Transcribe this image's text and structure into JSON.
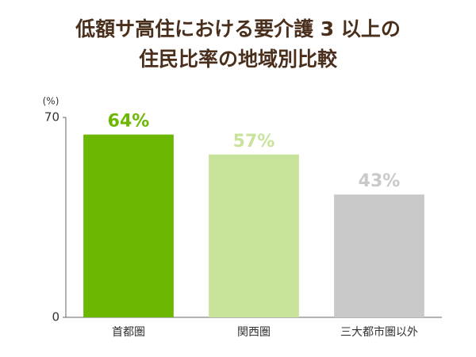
{
  "chart_data": {
    "type": "bar",
    "title": [
      "低額サ高住における要介護 3 以上の",
      "住民比率の地域別比較"
    ],
    "y_unit": "(%)",
    "categories": [
      "首都圏",
      "関西圏",
      "三大都市圏以外"
    ],
    "values": [
      64,
      57,
      43
    ],
    "value_labels": [
      "64%",
      "57%",
      "43%"
    ],
    "colors": [
      "#6cb800",
      "#c8e39b",
      "#c9c9c9"
    ],
    "ylim": [
      0,
      70
    ],
    "yticks": [
      0,
      70
    ],
    "grid": false
  }
}
